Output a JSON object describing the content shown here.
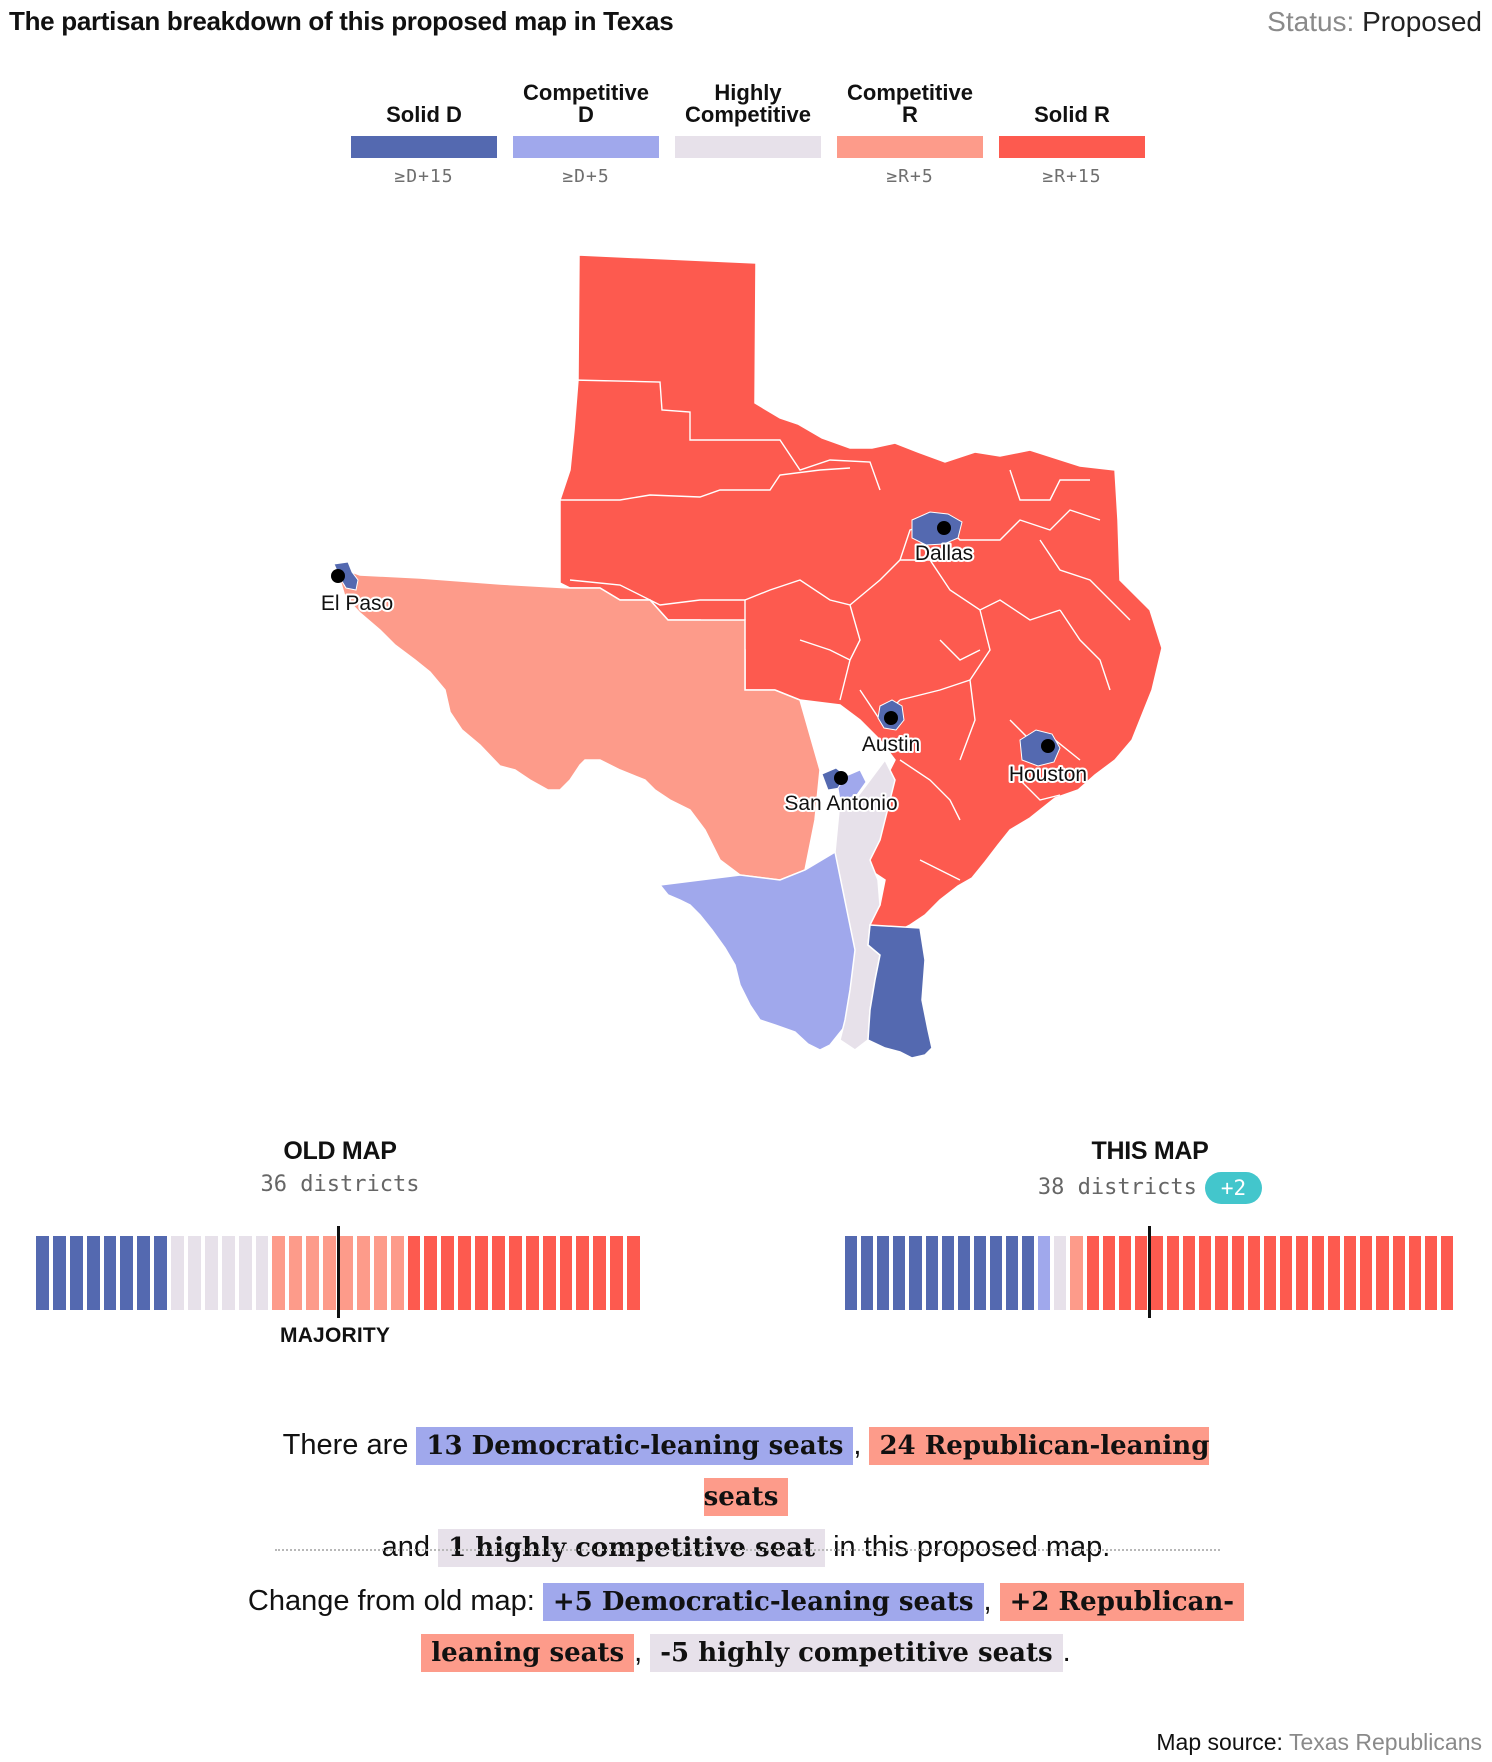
{
  "title": "The partisan breakdown of this proposed map in Texas",
  "status": {
    "label": "Status:",
    "value": "Proposed"
  },
  "legend": [
    {
      "label": "Solid D",
      "range": "≥D+15",
      "color": "#5469b0"
    },
    {
      "label": "Competitive D",
      "range": "≥D+5",
      "color": "#a0a8ec"
    },
    {
      "label": "Highly Competitive",
      "range": "",
      "color": "#e7e1ea"
    },
    {
      "label": "Competitive R",
      "range": "≥R+5",
      "color": "#fd9b8a"
    },
    {
      "label": "Solid R",
      "range": "≥R+15",
      "color": "#fd5a4f"
    }
  ],
  "map": {
    "state": "Texas",
    "cities": [
      "Dallas",
      "El Paso",
      "Austin",
      "Houston",
      "San Antonio"
    ]
  },
  "old_map": {
    "heading": "OLD MAP",
    "districts_text": "36 districts",
    "majority_label": "MAJORITY",
    "seats": {
      "solid_d": 8,
      "competitive_d": 0,
      "highly_competitive": 6,
      "competitive_r": 8,
      "solid_r": 14
    }
  },
  "new_map": {
    "heading": "THIS MAP",
    "districts_text": "38 districts",
    "change_badge": "+2",
    "seats": {
      "solid_d": 12,
      "competitive_d": 1,
      "highly_competitive": 1,
      "competitive_r": 1,
      "solid_r": 23
    }
  },
  "summary": {
    "s1_pre": "There are",
    "dem_seats": "13 Democratic-leaning seats",
    "comma": ",",
    "rep_seats": "24 Republican-leaning seats",
    "and": "and",
    "comp_seats": "1 highly competitive seat",
    "s1_post": "in this proposed map.",
    "s2_pre": "Change from old map:",
    "dem_change": "+5 Democratic-leaning seats",
    "rep_change_a": "+2 Republican-",
    "rep_change_b": "leaning seats",
    "comp_change": "-5 highly competitive seats",
    "period": "."
  },
  "source": {
    "label": "Map source:",
    "value": "Texas Republicans"
  }
}
